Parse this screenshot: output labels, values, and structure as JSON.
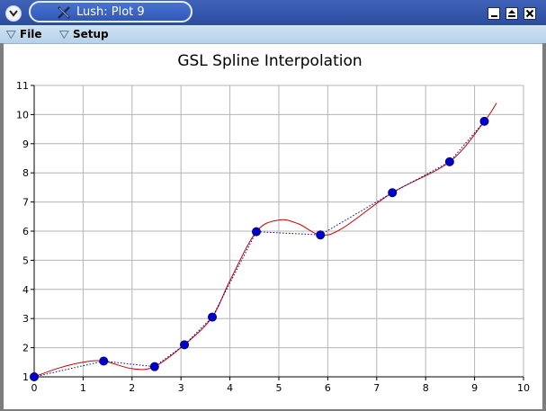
{
  "window": {
    "title": "Lush: Plot 9"
  },
  "menu": {
    "file": "File",
    "setup": "Setup"
  },
  "icons": {
    "window_menu": "chevron-down-icon",
    "app": "lush-app-icon",
    "minimize": "minimize-icon",
    "maximize": "maximize-icon",
    "close": "close-icon",
    "menu_arrow": "triangle-down-icon"
  },
  "colors": {
    "titlebar": "#2c4c9f",
    "menubar": "#c3d9ee",
    "spline": "#cc0000",
    "linear": "#0000aa",
    "points": "#0000cc",
    "grid": "#b4b4b4"
  },
  "chart_data": {
    "type": "line",
    "title": "GSL Spline Interpolation",
    "xlim": [
      0,
      10
    ],
    "ylim": [
      1,
      11
    ],
    "xticks": [
      "0",
      "1",
      "2",
      "3",
      "4",
      "5",
      "6",
      "7",
      "8",
      "9",
      "10"
    ],
    "yticks": [
      "1",
      "2",
      "3",
      "4",
      "5",
      "6",
      "7",
      "8",
      "9",
      "10",
      "11"
    ],
    "grid": true,
    "series": [
      {
        "style": "points+dotted",
        "x": [
          0,
          1.42,
          2.46,
          3.07,
          3.64,
          4.54,
          5.85,
          7.32,
          8.49,
          9.2
        ],
        "y": [
          1.0,
          1.54,
          1.35,
          2.1,
          3.05,
          5.98,
          5.87,
          7.32,
          8.38,
          9.77
        ]
      },
      {
        "style": "smooth-spline",
        "x": [
          0,
          0.5,
          1.0,
          1.42,
          2.0,
          2.46,
          3.07,
          3.64,
          4.0,
          4.54,
          5.0,
          5.4,
          5.85,
          6.3,
          7.32,
          8.49,
          9.2,
          9.45
        ],
        "y": [
          1.0,
          1.3,
          1.5,
          1.54,
          1.28,
          1.35,
          2.1,
          3.05,
          4.3,
          5.98,
          6.38,
          6.25,
          5.87,
          6.1,
          7.32,
          8.38,
          9.77,
          10.4
        ]
      }
    ]
  }
}
